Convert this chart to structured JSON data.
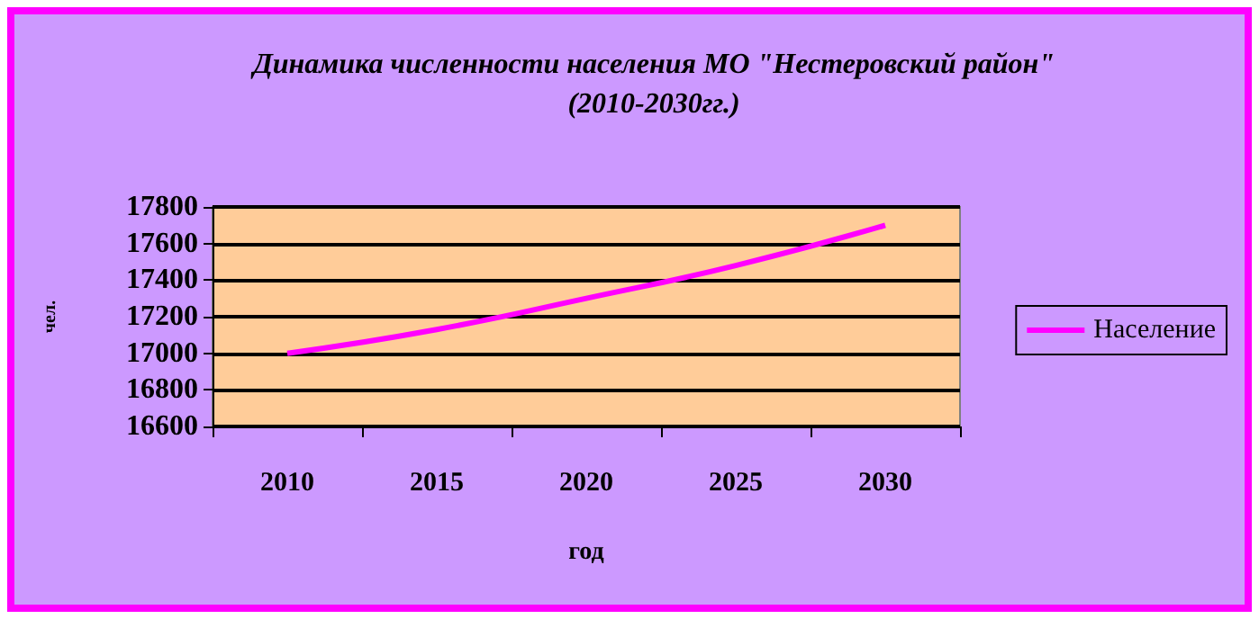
{
  "chart_data": {
    "type": "line",
    "title": "Динамика численности населения МО \"Нестеровский район\"\n(2010-2030гг.)",
    "xlabel": "год",
    "ylabel": "чел.",
    "categories": [
      "2010",
      "2015",
      "2020",
      "2025",
      "2030"
    ],
    "series": [
      {
        "name": "Население",
        "color": "#ff00ff",
        "values": [
          17000,
          17130,
          17300,
          17480,
          17700
        ]
      }
    ],
    "ylim": [
      16600,
      17800
    ],
    "yticks": [
      16600,
      16800,
      17000,
      17200,
      17400,
      17600,
      17800
    ],
    "grid": "y",
    "legend": "right",
    "marker": "none",
    "line_style": "solid"
  }
}
